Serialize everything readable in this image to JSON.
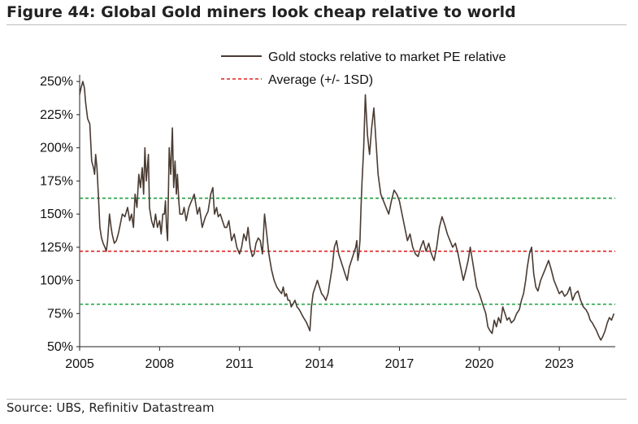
{
  "header": {
    "title": "Figure 44: Global Gold miners look cheap relative to world"
  },
  "footer": {
    "source": "Source: UBS, Refinitiv Datastream"
  },
  "colors": {
    "series": "#4a3b32",
    "average": "#e02020",
    "band": "#20a040",
    "axis": "#222222"
  },
  "chart_data": {
    "type": "line",
    "title": "Figure 44: Global Gold miners look cheap relative to world",
    "xlabel": "",
    "ylabel": "",
    "xlim": [
      2005,
      2025.1
    ],
    "ylim": [
      50,
      255
    ],
    "x_ticks": [
      2005,
      2008,
      2011,
      2014,
      2017,
      2020,
      2023
    ],
    "x_tick_labels": [
      "2005",
      "2008",
      "2011",
      "2014",
      "2017",
      "2020",
      "2023"
    ],
    "y_ticks": [
      50,
      75,
      100,
      125,
      150,
      175,
      200,
      225,
      250
    ],
    "y_tick_labels": [
      "50%",
      "75%",
      "100%",
      "125%",
      "150%",
      "175%",
      "200%",
      "225%",
      "250%"
    ],
    "grid": false,
    "legend_position": "top-right",
    "legend": [
      {
        "label": "Gold stocks relative to market PE relative",
        "style": "solid"
      },
      {
        "label": "Average (+/- 1SD)",
        "style": "dashed"
      }
    ],
    "reference_lines": [
      {
        "role": "average",
        "value": 122
      },
      {
        "role": "plus-1sd",
        "value": 162
      },
      {
        "role": "minus-1sd",
        "value": 82
      }
    ],
    "series": [
      {
        "style": "solid",
        "x": [
          2005.0,
          2005.05,
          2005.12,
          2005.18,
          2005.22,
          2005.3,
          2005.38,
          2005.45,
          2005.52,
          2005.56,
          2005.6,
          2005.65,
          2005.7,
          2005.76,
          2005.82,
          2005.88,
          2005.95,
          2006.0,
          2006.05,
          2006.12,
          2006.18,
          2006.22,
          2006.3,
          2006.38,
          2006.45,
          2006.5,
          2006.6,
          2006.7,
          2006.8,
          2006.88,
          2006.95,
          2007.02,
          2007.08,
          2007.15,
          2007.22,
          2007.28,
          2007.35,
          2007.4,
          2007.45,
          2007.5,
          2007.58,
          2007.62,
          2007.7,
          2007.78,
          2007.85,
          2007.92,
          2008.0,
          2008.06,
          2008.12,
          2008.18,
          2008.22,
          2008.26,
          2008.3,
          2008.36,
          2008.42,
          2008.48,
          2008.53,
          2008.58,
          2008.63,
          2008.67,
          2008.72,
          2008.76,
          2008.8,
          2008.86,
          2008.92,
          2009.0,
          2009.1,
          2009.2,
          2009.3,
          2009.42,
          2009.5,
          2009.6,
          2009.72,
          2009.82,
          2009.92,
          2010.0,
          2010.06,
          2010.14,
          2010.2,
          2010.28,
          2010.36,
          2010.44,
          2010.52,
          2010.6,
          2010.7,
          2010.8,
          2010.9,
          2011.0,
          2011.08,
          2011.16,
          2011.25,
          2011.32,
          2011.4,
          2011.48,
          2011.55,
          2011.62,
          2011.7,
          2011.78,
          2011.86,
          2011.94,
          2012.02,
          2012.1,
          2012.2,
          2012.3,
          2012.4,
          2012.5,
          2012.58,
          2012.64,
          2012.7,
          2012.76,
          2012.82,
          2012.88,
          2012.94,
          2013.0,
          2013.08,
          2013.16,
          2013.24,
          2013.32,
          2013.4,
          2013.46,
          2013.52,
          2013.58,
          2013.64,
          2013.7,
          2013.76,
          2013.84,
          2013.92,
          2014.0,
          2014.08,
          2014.16,
          2014.24,
          2014.32,
          2014.4,
          2014.48,
          2014.56,
          2014.64,
          2014.72,
          2014.8,
          2014.88,
          2014.96,
          2015.04,
          2015.12,
          2015.2,
          2015.28,
          2015.36,
          2015.4,
          2015.44,
          2015.48,
          2015.52,
          2015.56,
          2015.6,
          2015.66,
          2015.72,
          2015.8,
          2015.88,
          2015.96,
          2016.04,
          2016.12,
          2016.2,
          2016.3,
          2016.4,
          2016.5,
          2016.6,
          2016.7,
          2016.8,
          2016.9,
          2017.0,
          2017.1,
          2017.2,
          2017.3,
          2017.4,
          2017.5,
          2017.6,
          2017.7,
          2017.8,
          2017.9,
          2018.0,
          2018.1,
          2018.2,
          2018.3,
          2018.4,
          2018.5,
          2018.6,
          2018.7,
          2018.8,
          2018.9,
          2019.0,
          2019.1,
          2019.2,
          2019.3,
          2019.4,
          2019.5,
          2019.58,
          2019.66,
          2019.74,
          2019.82,
          2019.9,
          2020.0,
          2020.08,
          2020.16,
          2020.24,
          2020.32,
          2020.4,
          2020.48,
          2020.56,
          2020.64,
          2020.72,
          2020.8,
          2020.88,
          2020.96,
          2021.04,
          2021.12,
          2021.2,
          2021.3,
          2021.4,
          2021.5,
          2021.58,
          2021.66,
          2021.74,
          2021.8,
          2021.88,
          2021.96,
          2022.04,
          2022.12,
          2022.2,
          2022.3,
          2022.4,
          2022.5,
          2022.6,
          2022.7,
          2022.8,
          2022.9,
          2023.0,
          2023.1,
          2023.2,
          2023.3,
          2023.4,
          2023.5,
          2023.6,
          2023.7,
          2023.8,
          2023.9,
          2024.0,
          2024.08,
          2024.16,
          2024.24,
          2024.32,
          2024.4,
          2024.48,
          2024.56,
          2024.64,
          2024.72,
          2024.8,
          2024.88,
          2024.96,
          2025.05
        ],
        "values": [
          240,
          245,
          250,
          245,
          235,
          222,
          218,
          190,
          185,
          180,
          195,
          185,
          165,
          140,
          132,
          128,
          125,
          122,
          130,
          150,
          140,
          135,
          128,
          130,
          135,
          140,
          150,
          148,
          155,
          145,
          150,
          140,
          165,
          155,
          180,
          170,
          185,
          165,
          200,
          175,
          195,
          155,
          145,
          140,
          150,
          140,
          145,
          135,
          150,
          150,
          160,
          140,
          130,
          200,
          180,
          215,
          170,
          190,
          165,
          180,
          160,
          150,
          150,
          150,
          155,
          145,
          155,
          160,
          165,
          150,
          155,
          140,
          148,
          152,
          165,
          170,
          150,
          155,
          148,
          150,
          145,
          140,
          140,
          145,
          130,
          135,
          125,
          120,
          125,
          135,
          130,
          140,
          125,
          118,
          120,
          128,
          132,
          130,
          120,
          150,
          135,
          120,
          108,
          100,
          95,
          92,
          90,
          95,
          88,
          90,
          85,
          85,
          80,
          82,
          85,
          80,
          78,
          75,
          72,
          70,
          68,
          65,
          62,
          80,
          90,
          95,
          100,
          95,
          90,
          88,
          85,
          90,
          100,
          110,
          125,
          130,
          120,
          115,
          110,
          105,
          100,
          110,
          115,
          120,
          125,
          130,
          115,
          120,
          130,
          155,
          175,
          200,
          240,
          210,
          195,
          215,
          230,
          205,
          180,
          165,
          160,
          155,
          150,
          160,
          168,
          165,
          160,
          150,
          140,
          130,
          135,
          125,
          120,
          118,
          125,
          130,
          122,
          128,
          120,
          115,
          125,
          140,
          148,
          142,
          135,
          130,
          125,
          128,
          120,
          110,
          100,
          108,
          115,
          125,
          115,
          105,
          95,
          90,
          85,
          80,
          75,
          65,
          62,
          60,
          70,
          65,
          72,
          68,
          80,
          75,
          70,
          72,
          68,
          70,
          75,
          78,
          85,
          90,
          100,
          110,
          120,
          125,
          105,
          95,
          92,
          100,
          105,
          110,
          115,
          108,
          100,
          95,
          90,
          92,
          88,
          90,
          95,
          85,
          90,
          92,
          85,
          80,
          78,
          75,
          70,
          68,
          65,
          62,
          58,
          55,
          58,
          62,
          68,
          72,
          70,
          75
        ]
      }
    ]
  }
}
